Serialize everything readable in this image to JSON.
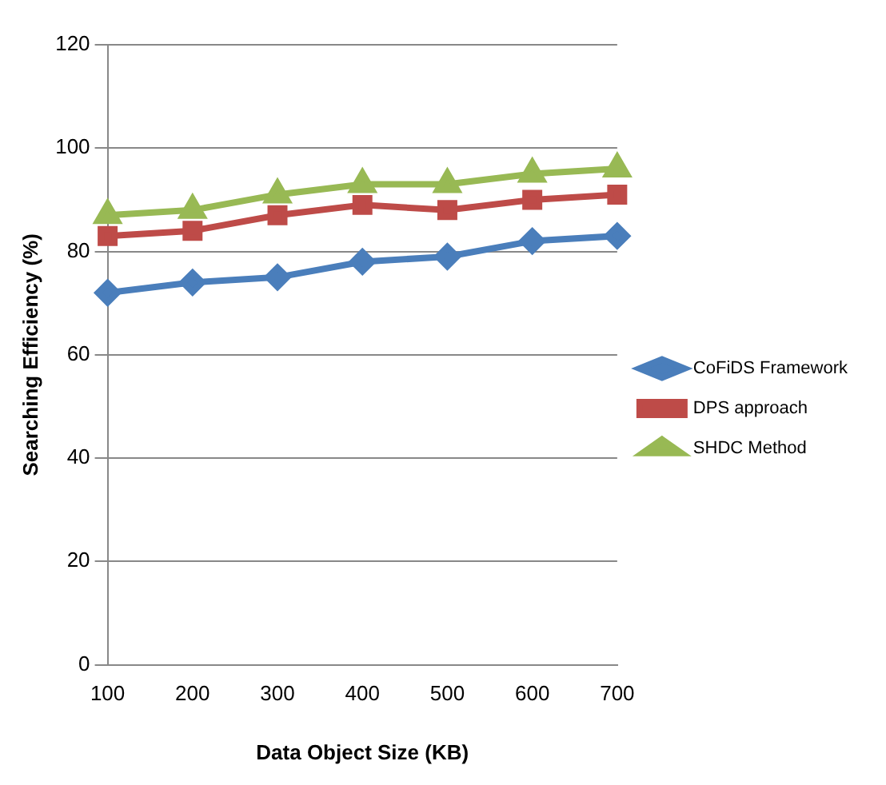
{
  "chart_data": {
    "type": "line",
    "xlabel": "Data Object Size (KB)",
    "ylabel": "Searching Efficiency (%)",
    "categories": [
      "100",
      "200",
      "300",
      "400",
      "500",
      "600",
      "700"
    ],
    "series": [
      {
        "name": "CoFiDS Framework",
        "color": "#4a7ebb",
        "marker": "diamond",
        "values": [
          72,
          74,
          75,
          78,
          79,
          82,
          83
        ]
      },
      {
        "name": "DPS approach",
        "color": "#be4b48",
        "marker": "square",
        "values": [
          83,
          84,
          87,
          89,
          88,
          90,
          91
        ]
      },
      {
        "name": "SHDC Method",
        "color": "#98b954",
        "marker": "triangle",
        "values": [
          87,
          88,
          91,
          93,
          93,
          95,
          96
        ]
      }
    ],
    "ylim": [
      0,
      120
    ],
    "yticks": [
      0,
      20,
      40,
      60,
      80,
      100,
      120
    ],
    "grid": "y",
    "legend": "right"
  }
}
